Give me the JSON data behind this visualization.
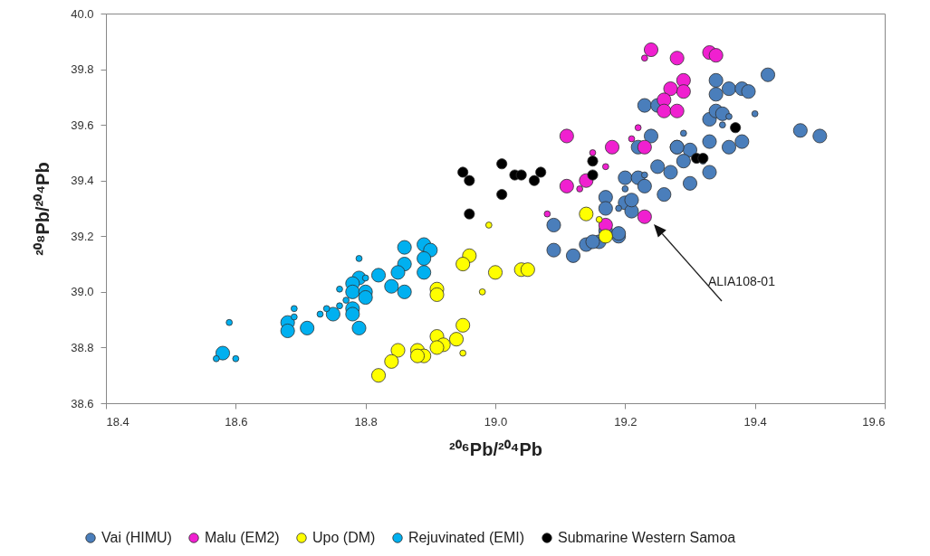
{
  "chart_data": {
    "type": "bubble",
    "xlabel": "²⁰⁶Pb/²⁰⁴Pb",
    "ylabel": "²⁰⁸Pb/²⁰⁴Pb",
    "xlim": [
      18.4,
      19.6
    ],
    "xticks": [
      18.4,
      18.6,
      18.8,
      {
        "value": 19,
        "label": "19.0"
      },
      19.2,
      19.4,
      19.6
    ],
    "ylim": [
      38.6,
      40
    ],
    "yticks": [
      38.6,
      38.8,
      {
        "value": 39,
        "label": "39.0"
      },
      39.2,
      39.4,
      39.6,
      39.8,
      {
        "value": 40,
        "label": "40.0"
      }
    ],
    "grid": false,
    "legend": "bottom",
    "marker": "circle",
    "annotations": [
      "ALIA108-01"
    ],
    "series": [
      {
        "name": "Vai (HIMU)",
        "color": "#4a7ebb",
        "x": [
          19.09,
          19.12,
          19.14,
          19.16,
          19.17,
          19.19,
          19.17,
          19.17,
          19.2,
          19.2,
          19.21,
          19.22,
          19.25,
          19.28,
          19.3,
          19.33,
          19.33,
          19.36,
          19.3,
          19.26,
          19.23,
          19.21,
          19.19,
          19.15,
          19.09,
          19.27,
          19.29,
          19.34,
          19.36,
          19.38,
          19.39,
          19.42,
          19.34,
          19.23,
          19.25,
          19.33,
          19.34,
          19.35,
          19.24,
          19.22,
          19.28,
          19.38,
          19.47,
          19.5,
          19.4,
          19.29,
          19.32,
          19.23,
          19.19,
          19.36,
          19.35,
          19.2
        ],
        "values": [
          39.24,
          39.13,
          39.17,
          39.18,
          39.22,
          39.2,
          39.34,
          39.3,
          39.32,
          39.41,
          39.29,
          39.41,
          39.45,
          39.52,
          39.51,
          39.54,
          39.43,
          39.52,
          39.39,
          39.35,
          39.38,
          39.33,
          39.21,
          39.18,
          39.15,
          39.43,
          39.47,
          39.76,
          39.73,
          39.73,
          39.72,
          39.78,
          39.71,
          39.67,
          39.67,
          39.62,
          39.65,
          39.64,
          39.56,
          39.52,
          39.52,
          39.54,
          39.58,
          39.56,
          39.64,
          39.57,
          39.47,
          39.42,
          39.3,
          39.63,
          39.6,
          39.37
        ],
        "sizes": [
          1,
          1,
          1,
          1,
          1,
          1,
          1,
          1,
          1,
          1,
          1,
          1,
          1,
          1,
          1,
          1,
          1,
          1,
          1,
          1,
          1,
          1,
          1,
          1,
          1,
          1,
          1,
          1,
          1,
          1,
          1,
          1,
          1,
          1,
          1,
          1,
          1,
          1,
          1,
          1,
          1,
          1,
          1,
          1,
          0.2,
          0.2,
          0.2,
          0.2,
          0.2,
          0.2,
          0.2,
          0.2
        ]
      },
      {
        "name": "Malu (EM2)",
        "color": "#f020d0",
        "x": [
          19.24,
          19.28,
          19.33,
          19.34,
          19.29,
          19.29,
          19.27,
          19.26,
          19.26,
          19.28,
          19.11,
          19.18,
          19.23,
          19.11,
          19.14,
          19.17,
          19.23,
          19.23,
          19.22,
          19.21,
          19.15,
          19.17,
          19.13,
          19.08
        ],
        "values": [
          39.87,
          39.84,
          39.86,
          39.85,
          39.76,
          39.72,
          39.73,
          39.69,
          39.65,
          39.65,
          39.56,
          39.52,
          39.52,
          39.38,
          39.4,
          39.24,
          39.27,
          39.84,
          39.59,
          39.55,
          39.5,
          39.45,
          39.37,
          39.28
        ],
        "sizes": [
          1,
          1,
          1,
          1,
          1,
          1,
          1,
          1,
          1,
          1,
          1,
          1,
          1,
          1,
          1,
          1,
          1,
          0.2,
          0.2,
          0.2,
          0.2,
          0.2,
          0.2,
          0.2
        ]
      },
      {
        "name": "Upo (DM)",
        "color": "#ffff00",
        "x": [
          19.14,
          19.17,
          19.0,
          19.04,
          19.05,
          18.96,
          18.95,
          18.91,
          18.91,
          18.95,
          18.94,
          18.91,
          18.92,
          18.91,
          18.88,
          18.89,
          18.88,
          18.85,
          18.84,
          18.82,
          18.95,
          18.99,
          19.16,
          18.98
        ],
        "values": [
          39.28,
          39.2,
          39.07,
          39.08,
          39.08,
          39.13,
          39.1,
          39.01,
          38.99,
          38.88,
          38.83,
          38.84,
          38.81,
          38.8,
          38.79,
          38.77,
          38.77,
          38.79,
          38.75,
          38.7,
          38.78,
          39.24,
          39.26,
          39.0
        ],
        "sizes": [
          1,
          1,
          1,
          1,
          1,
          1,
          1,
          1,
          1,
          1,
          1,
          1,
          1,
          1,
          1,
          1,
          1,
          1,
          1,
          1,
          0.2,
          0.2,
          0.2,
          0.2
        ]
      },
      {
        "name": "Rejuvinated (EMI)",
        "color": "#00b0f0",
        "x": [
          18.86,
          18.89,
          18.9,
          18.89,
          18.89,
          18.86,
          18.85,
          18.82,
          18.84,
          18.86,
          18.79,
          18.78,
          18.78,
          18.8,
          18.8,
          18.78,
          18.78,
          18.79,
          18.75,
          18.71,
          18.68,
          18.68,
          18.58,
          18.79,
          18.76,
          18.77,
          18.76,
          18.74,
          18.73,
          18.69,
          18.69,
          18.59,
          18.6,
          18.57,
          18.8
        ],
        "values": [
          39.16,
          39.17,
          39.15,
          39.12,
          39.07,
          39.1,
          39.07,
          39.06,
          39.02,
          39.0,
          39.05,
          39.03,
          39.0,
          39.0,
          38.98,
          38.94,
          38.92,
          38.87,
          38.92,
          38.87,
          38.89,
          38.86,
          38.78,
          39.12,
          39.01,
          38.97,
          38.95,
          38.94,
          38.92,
          38.94,
          38.91,
          38.89,
          38.76,
          38.76,
          39.05
        ],
        "sizes": [
          1,
          1,
          1,
          1,
          1,
          1,
          1,
          1,
          1,
          1,
          1,
          1,
          1,
          1,
          1,
          1,
          1,
          1,
          1,
          1,
          1,
          1,
          1,
          0.2,
          0.2,
          0.2,
          0.2,
          0.2,
          0.2,
          0.2,
          0.2,
          0.2,
          0.2,
          0.2,
          0.2
        ]
      },
      {
        "name": "Submarine Western Samoa",
        "color": "#000000",
        "x": [
          18.95,
          18.96,
          19.01,
          19.03,
          19.04,
          19.07,
          19.06,
          19.01,
          18.96,
          19.15,
          19.15,
          19.37,
          19.31,
          19.32
        ],
        "values": [
          39.43,
          39.4,
          39.46,
          39.42,
          39.42,
          39.43,
          39.4,
          39.35,
          39.28,
          39.47,
          39.42,
          39.59,
          39.48,
          39.48
        ],
        "sizes": [
          0.55,
          0.55,
          0.55,
          0.55,
          0.55,
          0.55,
          0.55,
          0.55,
          0.55,
          0.55,
          0.55,
          0.55,
          0.55,
          0.55
        ]
      }
    ]
  }
}
